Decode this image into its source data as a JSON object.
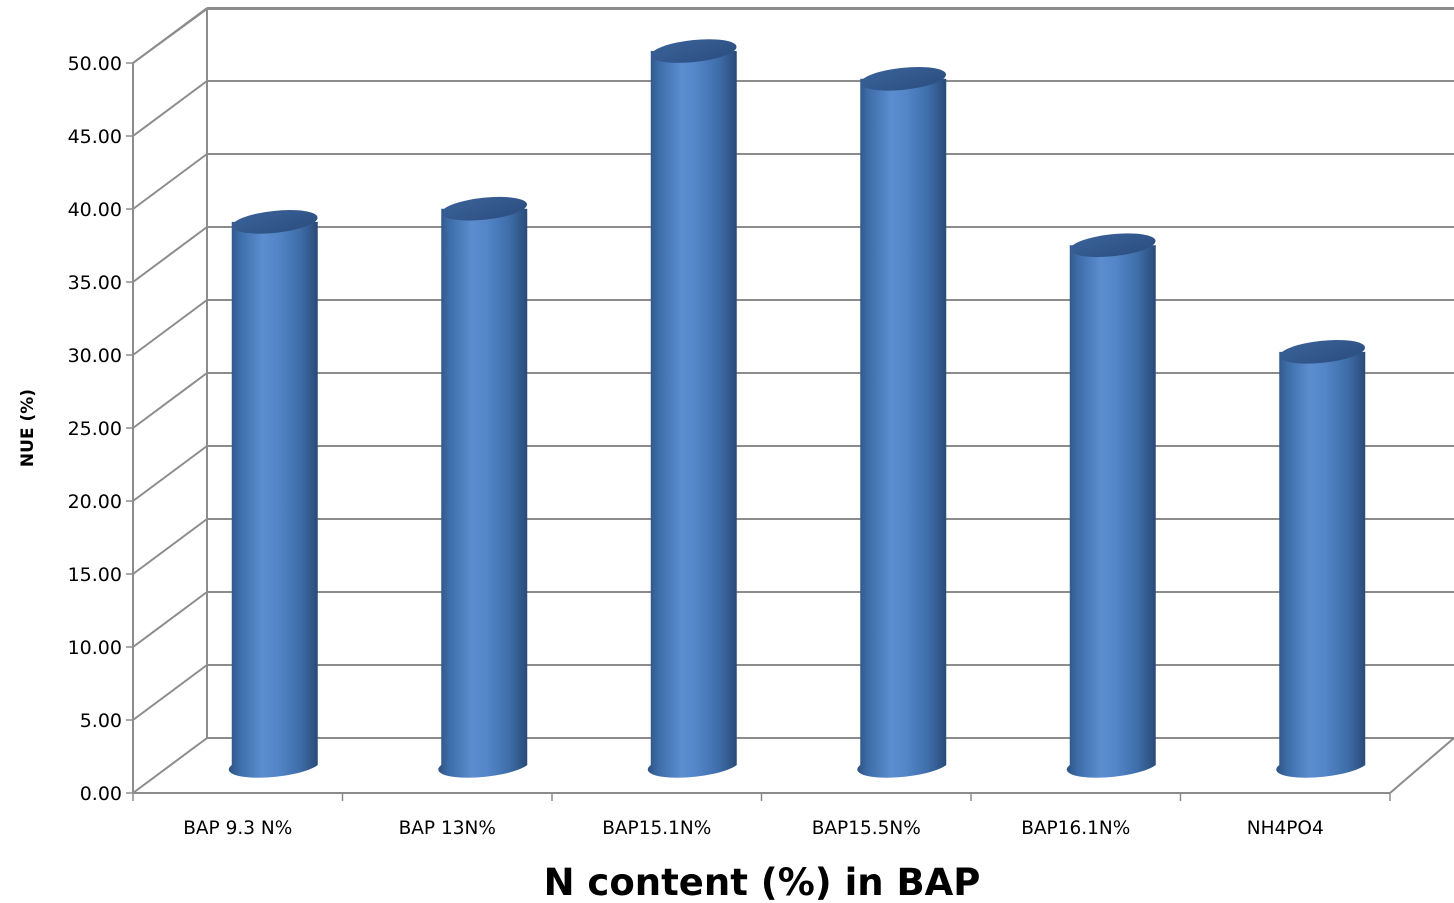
{
  "chart_data": {
    "type": "bar",
    "style": "3d-cylinder",
    "categories": [
      "BAP 9.3 N%",
      "BAP 13N%",
      "BAP15.1N%",
      "BAP15.5N%",
      "BAP16.1N%",
      "NH4PO4"
    ],
    "values": [
      37.2,
      38.1,
      48.9,
      47.0,
      35.6,
      28.3
    ],
    "xlabel": "N  content (%) in BAP",
    "ylabel": "NUE (%)",
    "ylim": [
      0,
      50
    ],
    "ytick_step": 5,
    "ytick_labels": [
      "0.00",
      "5.00",
      "10.00",
      "15.00",
      "20.00",
      "25.00",
      "30.00",
      "35.00",
      "40.00",
      "45.00",
      "50.00"
    ],
    "grid": true,
    "legend": "none",
    "bar_color": "#4F81BD"
  }
}
